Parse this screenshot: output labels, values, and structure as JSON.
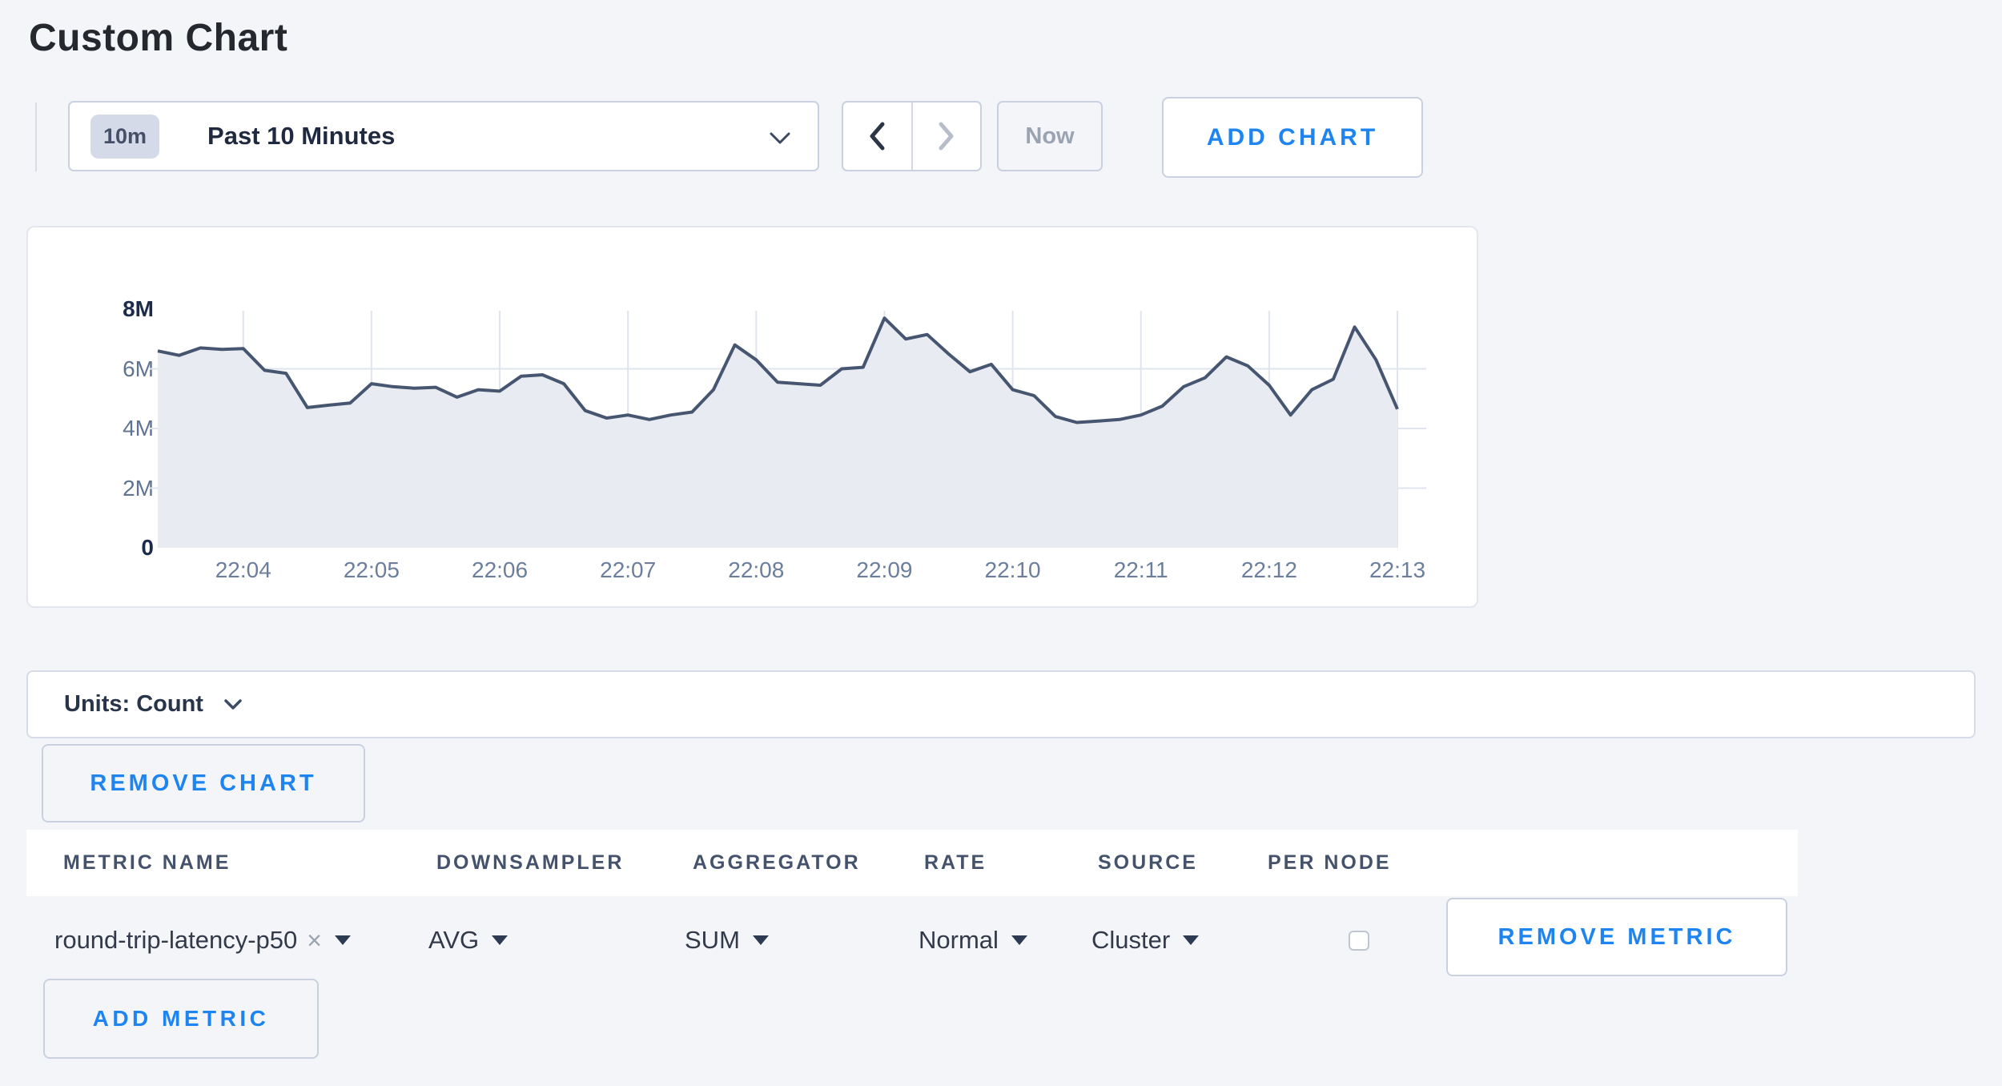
{
  "page": {
    "title": "Custom Chart"
  },
  "toolbar": {
    "time_range": {
      "badge": "10m",
      "label": "Past 10 Minutes"
    },
    "now_label": "Now",
    "add_chart_label": "ADD CHART"
  },
  "chart_data": {
    "type": "area",
    "title": "",
    "ylabel": "Count",
    "start_time": "22:03:20",
    "interval_seconds": 10,
    "values_millions": [
      6.6,
      6.45,
      6.7,
      6.65,
      6.68,
      5.95,
      5.85,
      4.7,
      4.78,
      4.85,
      5.5,
      5.4,
      5.35,
      5.38,
      5.05,
      5.3,
      5.25,
      5.75,
      5.8,
      5.5,
      4.6,
      4.35,
      4.45,
      4.3,
      4.45,
      4.55,
      5.3,
      6.8,
      6.3,
      5.55,
      5.5,
      5.45,
      6.0,
      6.05,
      7.7,
      7.0,
      7.15,
      6.5,
      5.9,
      6.15,
      5.3,
      5.1,
      4.4,
      4.2,
      4.25,
      4.3,
      4.45,
      4.75,
      5.4,
      5.7,
      6.4,
      6.1,
      5.45,
      4.45,
      5.3,
      5.65,
      7.4,
      6.3,
      4.65
    ],
    "ylim_millions": [
      0,
      8
    ],
    "y_ticks": [
      {
        "label": "0",
        "value": 0,
        "emphasis": true
      },
      {
        "label": "2M",
        "value": 2,
        "emphasis": false
      },
      {
        "label": "4M",
        "value": 4,
        "emphasis": false
      },
      {
        "label": "6M",
        "value": 6,
        "emphasis": false
      },
      {
        "label": "8M",
        "value": 8,
        "emphasis": true
      }
    ],
    "x_ticks": [
      {
        "label": "22:04",
        "index": 4
      },
      {
        "label": "22:05",
        "index": 10
      },
      {
        "label": "22:06",
        "index": 16
      },
      {
        "label": "22:07",
        "index": 22
      },
      {
        "label": "22:08",
        "index": 28
      },
      {
        "label": "22:09",
        "index": 34
      },
      {
        "label": "22:10",
        "index": 40
      },
      {
        "label": "22:11",
        "index": 46
      },
      {
        "label": "22:12",
        "index": 52
      },
      {
        "label": "22:13",
        "index": 58
      }
    ],
    "grid": true,
    "legend": "none"
  },
  "units_bar": {
    "label": "Units: Count"
  },
  "chart_actions": {
    "remove_chart_label": "REMOVE CHART"
  },
  "metrics_table": {
    "headers": [
      "METRIC NAME",
      "DOWNSAMPLER",
      "AGGREGATOR",
      "RATE",
      "SOURCE",
      "PER NODE"
    ],
    "row": {
      "metric_name": "round-trip-latency-p50",
      "clear_icon": "×",
      "downsampler": "AVG",
      "aggregator": "SUM",
      "rate": "Normal",
      "source": "Cluster",
      "per_node_checked": false,
      "remove_label": "REMOVE METRIC"
    },
    "add_metric_label": "ADD METRIC"
  },
  "colors": {
    "accent_blue": "#1e85f0",
    "title_text": "#25282e",
    "dark_navy": "#1c2b49",
    "slate_text": "#44536b",
    "axis_label": "#5f7392",
    "muted_text": "#9aa3b1",
    "line": "#475670",
    "fill": "#e9ebf2",
    "grid": "#dfe4ed",
    "page_bg": "#f4f5f9",
    "card_border": "#e3e6ee",
    "control_border": "#c9d1e0",
    "badge_bg": "#d5dae8",
    "badge_text": "#454f66",
    "row_text": "#323a49"
  }
}
